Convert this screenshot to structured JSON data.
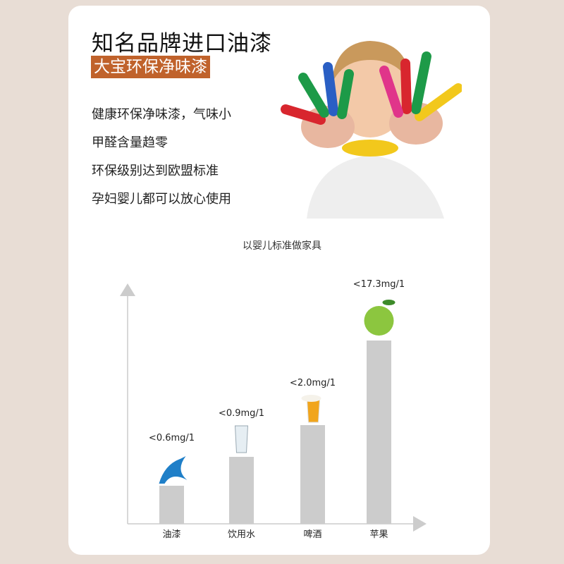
{
  "header": {
    "title": "知名品牌进口油漆",
    "tag": "大宝环保净味漆"
  },
  "features": [
    "健康环保净味漆，气味小",
    "甲醛含量趋零",
    "环保级别达到欧盟标准",
    "孕妇婴儿都可以放心使用"
  ],
  "colors": {
    "accent": "#c0622b",
    "bar": "#cccccc",
    "axis": "#cccccc",
    "background": "#e8ddd5"
  },
  "chart_data": {
    "type": "bar",
    "title": "以婴儿标准做家具",
    "categories": [
      "油漆",
      "饮用水",
      "啤酒",
      "苹果"
    ],
    "value_labels": [
      "<0.6mg/1",
      "<0.9mg/1",
      "<2.0mg/1",
      "<17.3mg/1"
    ],
    "values": [
      0.6,
      0.9,
      2.0,
      17.3
    ],
    "icons": [
      "paint-splash-icon",
      "water-glass-icon",
      "beer-glass-icon",
      "apple-icon"
    ],
    "grid": false
  }
}
